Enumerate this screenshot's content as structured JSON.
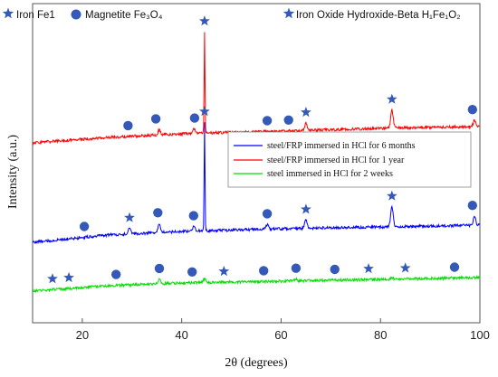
{
  "chart_data": {
    "type": "line",
    "xlabel": "2θ (degrees)",
    "ylabel": "Intensity (a.u.)",
    "xlim": [
      10,
      100
    ],
    "x_ticks": [
      20,
      40,
      60,
      80,
      100
    ],
    "y_ticks_shown": false,
    "grid": false,
    "legend_position": "center-right",
    "phase_legend": [
      {
        "label": "Iron Fe1",
        "marker": "star"
      },
      {
        "label": "Magnetite Fe₃O₄",
        "marker": "circle"
      },
      {
        "label": "Iron Oxide Hydroxide-Beta H₁Fe₁O₂",
        "marker": "star"
      }
    ],
    "colors": {
      "marker": "#3559b8",
      "red": "#ff0000",
      "blue": "#0000ff",
      "green": "#00dd00"
    },
    "series": [
      {
        "name": "steel/FRP immersed in HCl for 6 months",
        "legend_label": "steel/FRP immersed in HCl for 6 months",
        "color": "#0000ff",
        "baseline": [
          [
            10,
            0.54
          ],
          [
            25,
            0.62
          ],
          [
            40,
            0.66
          ],
          [
            60,
            0.69
          ],
          [
            80,
            0.71
          ],
          [
            100,
            0.73
          ]
        ],
        "peaks": [
          [
            29.5,
            0.06
          ],
          [
            35.5,
            0.1
          ],
          [
            42.5,
            0.05
          ],
          [
            44.6,
            1.2
          ],
          [
            57.2,
            0.05
          ],
          [
            65.0,
            0.09
          ],
          [
            82.3,
            0.22
          ],
          [
            98.9,
            0.1
          ]
        ],
        "markers": [
          {
            "x": 20.4,
            "type": "circle"
          },
          {
            "x": 29.5,
            "type": "star"
          },
          {
            "x": 35.2,
            "type": "circle"
          },
          {
            "x": 42.4,
            "type": "circle"
          },
          {
            "x": 44.6,
            "type": "star"
          },
          {
            "x": 57.2,
            "type": "circle"
          },
          {
            "x": 65.0,
            "type": "star"
          },
          {
            "x": 82.3,
            "type": "star"
          },
          {
            "x": 98.5,
            "type": "circle"
          }
        ]
      },
      {
        "name": "steel/FRP immersed in HCl for 1 year",
        "legend_label": "steel/FRP immersed in HCl for 1 year",
        "color": "#ff0000",
        "baseline": [
          [
            10,
            1.64
          ],
          [
            25,
            1.7
          ],
          [
            40,
            1.74
          ],
          [
            60,
            1.77
          ],
          [
            80,
            1.8
          ],
          [
            100,
            1.82
          ]
        ],
        "peaks": [
          [
            35.5,
            0.06
          ],
          [
            42.5,
            0.05
          ],
          [
            44.6,
            1.12
          ],
          [
            65.0,
            0.08
          ],
          [
            82.3,
            0.2
          ],
          [
            98.9,
            0.07
          ]
        ],
        "markers": [
          {
            "x": 29.2,
            "type": "circle"
          },
          {
            "x": 34.8,
            "type": "circle"
          },
          {
            "x": 42.6,
            "type": "circle"
          },
          {
            "x": 44.6,
            "type": "star"
          },
          {
            "x": 57.2,
            "type": "circle"
          },
          {
            "x": 61.5,
            "type": "circle"
          },
          {
            "x": 65.0,
            "type": "star"
          },
          {
            "x": 82.3,
            "type": "star"
          },
          {
            "x": 98.5,
            "type": "circle"
          }
        ]
      },
      {
        "name": "steel immersed in HCl for 2 weeks",
        "legend_label": "steel immersed in HCl for 2 weeks",
        "color": "#00dd00",
        "baseline": [
          [
            10,
            0.0
          ],
          [
            25,
            0.06
          ],
          [
            40,
            0.09
          ],
          [
            60,
            0.11
          ],
          [
            80,
            0.13
          ],
          [
            100,
            0.15
          ]
        ],
        "peaks": [
          [
            35.5,
            0.05
          ],
          [
            44.6,
            0.04
          ],
          [
            63.0,
            0.02
          ],
          [
            82.3,
            0.02
          ]
        ],
        "markers": [
          {
            "x": 14.0,
            "type": "star"
          },
          {
            "x": 17.3,
            "type": "star"
          },
          {
            "x": 26.8,
            "type": "circle"
          },
          {
            "x": 35.5,
            "type": "circle"
          },
          {
            "x": 42.1,
            "type": "circle"
          },
          {
            "x": 48.5,
            "type": "star"
          },
          {
            "x": 56.5,
            "type": "circle"
          },
          {
            "x": 63.0,
            "type": "circle"
          },
          {
            "x": 70.8,
            "type": "circle"
          },
          {
            "x": 77.6,
            "type": "star"
          },
          {
            "x": 85.0,
            "type": "star"
          },
          {
            "x": 94.9,
            "type": "circle"
          }
        ]
      }
    ]
  }
}
